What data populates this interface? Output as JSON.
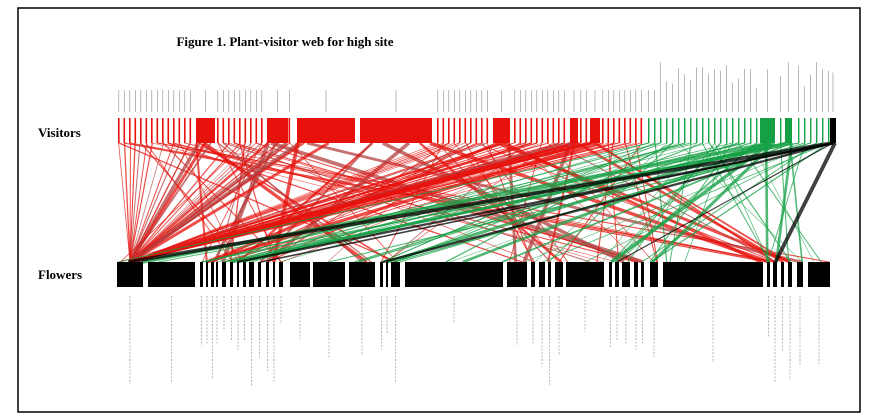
{
  "figure": {
    "title": "Figure 1. Plant-visitor web for high site",
    "visitors_label": "Visitors",
    "flowers_label": "Flowers"
  }
}
